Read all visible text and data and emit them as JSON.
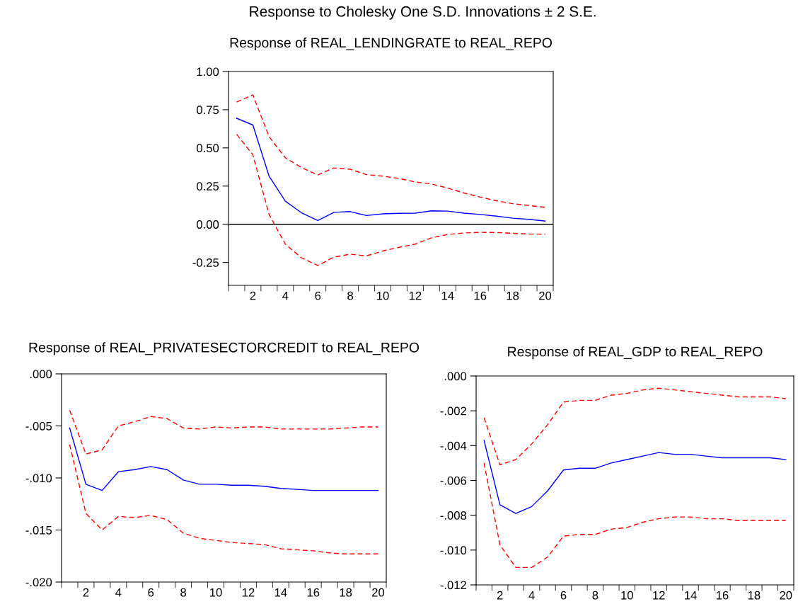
{
  "chart_data": [
    {
      "type": "line",
      "title": "Response to Cholesky One S.D. Innovations ± 2 S.E.",
      "subtitle": "Response of REAL_LENDINGRATE to REAL_REPO",
      "x": [
        1,
        2,
        3,
        4,
        5,
        6,
        7,
        8,
        9,
        10,
        11,
        12,
        13,
        14,
        15,
        16,
        17,
        18,
        19,
        20
      ],
      "series": [
        {
          "color": "#0000ff",
          "line_style": "solid",
          "values": [
            0.694,
            0.65,
            0.315,
            0.151,
            0.075,
            0.025,
            0.078,
            0.083,
            0.057,
            0.068,
            0.072,
            0.073,
            0.088,
            0.086,
            0.073,
            0.064,
            0.053,
            0.04,
            0.032,
            0.021
          ]
        },
        {
          "color": "#ff0000",
          "line_style": "dashed",
          "values": [
            0.8,
            0.847,
            0.573,
            0.435,
            0.371,
            0.323,
            0.369,
            0.36,
            0.325,
            0.315,
            0.3,
            0.277,
            0.264,
            0.237,
            0.205,
            0.178,
            0.154,
            0.135,
            0.123,
            0.111
          ]
        },
        {
          "color": "#ff0000",
          "line_style": "dashed",
          "values": [
            0.589,
            0.455,
            0.064,
            -0.13,
            -0.22,
            -0.27,
            -0.215,
            -0.196,
            -0.207,
            -0.175,
            -0.151,
            -0.13,
            -0.089,
            -0.067,
            -0.057,
            -0.053,
            -0.054,
            -0.059,
            -0.064,
            -0.065
          ]
        }
      ],
      "xlim": [
        0.5,
        20.5
      ],
      "xticks": [
        2,
        4,
        6,
        8,
        10,
        12,
        14,
        16,
        18,
        20,
        {
          "value": 0.5,
          "label": null
        },
        {
          "value": 1.5,
          "label": null
        },
        {
          "value": 2.5,
          "label": null
        },
        {
          "value": 3.5,
          "label": null
        },
        {
          "value": 4.5,
          "label": null
        },
        {
          "value": 5.5,
          "label": null
        },
        {
          "value": 6.5,
          "label": null
        },
        {
          "value": 7.5,
          "label": null
        },
        {
          "value": 8.5,
          "label": null
        },
        {
          "value": 9.5,
          "label": null
        },
        {
          "value": 10.5,
          "label": null
        },
        {
          "value": 11.5,
          "label": null
        },
        {
          "value": 12.5,
          "label": null
        },
        {
          "value": 13.5,
          "label": null
        },
        {
          "value": 14.5,
          "label": null
        },
        {
          "value": 15.5,
          "label": null
        },
        {
          "value": 16.5,
          "label": null
        },
        {
          "value": 17.5,
          "label": null
        },
        {
          "value": 18.5,
          "label": null
        },
        {
          "value": 19.5,
          "label": null
        },
        {
          "value": 20.5,
          "label": null
        }
      ],
      "ylim": [
        -0.4,
        1.0
      ],
      "yticks": [
        {
          "value": -0.25,
          "label": "-0.25"
        },
        {
          "value": 0,
          "label": "0.00"
        },
        {
          "value": 0.25,
          "label": "0.25"
        },
        {
          "value": 0.5,
          "label": "0.50"
        },
        {
          "value": 0.75,
          "label": "0.75"
        },
        {
          "value": 1.0,
          "label": "1.00"
        }
      ],
      "ref_lines": [
        {
          "axis": "y",
          "value": 0,
          "color": "#000000",
          "line_style": "solid"
        }
      ],
      "grid": false,
      "legend": false
    },
    {
      "type": "line",
      "title": "Response of REAL_PRIVATESECTORCREDIT to REAL_REPO",
      "x": [
        1,
        2,
        3,
        4,
        5,
        6,
        7,
        8,
        9,
        10,
        11,
        12,
        13,
        14,
        15,
        16,
        17,
        18,
        19,
        20
      ],
      "series": [
        {
          "color": "#0000ff",
          "line_style": "solid",
          "values": [
            -0.0052,
            -0.0106,
            -0.0112,
            -0.0094,
            -0.0092,
            -0.0089,
            -0.0092,
            -0.0102,
            -0.0106,
            -0.0106,
            -0.0107,
            -0.0107,
            -0.0108,
            -0.011,
            -0.0111,
            -0.0112,
            -0.0112,
            -0.0112,
            -0.0112,
            -0.0112
          ]
        },
        {
          "color": "#ff0000",
          "line_style": "dashed",
          "values": [
            -0.0035,
            -0.0077,
            -0.0073,
            -0.005,
            -0.0046,
            -0.0041,
            -0.0043,
            -0.0052,
            -0.0053,
            -0.0051,
            -0.0052,
            -0.0051,
            -0.0051,
            -0.0053,
            -0.0053,
            -0.0053,
            -0.0053,
            -0.0052,
            -0.0051,
            -0.0051
          ]
        },
        {
          "color": "#ff0000",
          "line_style": "dashed",
          "values": [
            -0.0068,
            -0.0134,
            -0.015,
            -0.0137,
            -0.0138,
            -0.0136,
            -0.014,
            -0.0153,
            -0.0158,
            -0.016,
            -0.0162,
            -0.0163,
            -0.0164,
            -0.0168,
            -0.0169,
            -0.017,
            -0.0172,
            -0.0173,
            -0.0173,
            -0.0173
          ]
        }
      ],
      "xlim": [
        0.5,
        20.5
      ],
      "xticks": [
        2,
        4,
        6,
        8,
        10,
        12,
        14,
        16,
        18,
        20,
        {
          "value": 0.5,
          "label": null
        },
        {
          "value": 1.5,
          "label": null
        },
        {
          "value": 2.5,
          "label": null
        },
        {
          "value": 3.5,
          "label": null
        },
        {
          "value": 4.5,
          "label": null
        },
        {
          "value": 5.5,
          "label": null
        },
        {
          "value": 6.5,
          "label": null
        },
        {
          "value": 7.5,
          "label": null
        },
        {
          "value": 8.5,
          "label": null
        },
        {
          "value": 9.5,
          "label": null
        },
        {
          "value": 10.5,
          "label": null
        },
        {
          "value": 11.5,
          "label": null
        },
        {
          "value": 12.5,
          "label": null
        },
        {
          "value": 13.5,
          "label": null
        },
        {
          "value": 14.5,
          "label": null
        },
        {
          "value": 15.5,
          "label": null
        },
        {
          "value": 16.5,
          "label": null
        },
        {
          "value": 17.5,
          "label": null
        },
        {
          "value": 18.5,
          "label": null
        },
        {
          "value": 19.5,
          "label": null
        },
        {
          "value": 20.5,
          "label": null
        }
      ],
      "ylim": [
        -0.02,
        0.0
      ],
      "yticks": [
        {
          "value": -0.02,
          "label": "-.020"
        },
        {
          "value": -0.015,
          "label": "-.015"
        },
        {
          "value": -0.01,
          "label": "-.010"
        },
        {
          "value": -0.005,
          "label": "-.005"
        },
        {
          "value": 0,
          "label": ".000"
        }
      ],
      "grid": false,
      "legend": false
    },
    {
      "type": "line",
      "title": "Response of REAL_GDP to REAL_REPO",
      "x": [
        1,
        2,
        3,
        4,
        5,
        6,
        7,
        8,
        9,
        10,
        11,
        12,
        13,
        14,
        15,
        16,
        17,
        18,
        19,
        20
      ],
      "series": [
        {
          "color": "#0000ff",
          "line_style": "solid",
          "values": [
            -0.0037,
            -0.0074,
            -0.0079,
            -0.0075,
            -0.0066,
            -0.0054,
            -0.0053,
            -0.0053,
            -0.005,
            -0.0048,
            -0.0046,
            -0.0044,
            -0.0045,
            -0.0045,
            -0.0046,
            -0.0047,
            -0.0047,
            -0.0047,
            -0.0047,
            -0.0048
          ]
        },
        {
          "color": "#ff0000",
          "line_style": "dashed",
          "values": [
            -0.0024,
            -0.0051,
            -0.0048,
            -0.0039,
            -0.0028,
            -0.0015,
            -0.0014,
            -0.0014,
            -0.0011,
            -0.001,
            -0.0008,
            -0.0007,
            -0.0008,
            -0.0009,
            -0.001,
            -0.0011,
            -0.0012,
            -0.0012,
            -0.0012,
            -0.0013
          ]
        },
        {
          "color": "#ff0000",
          "line_style": "dashed",
          "values": [
            -0.005,
            -0.0097,
            -0.011,
            -0.011,
            -0.0104,
            -0.0092,
            -0.0091,
            -0.0091,
            -0.0088,
            -0.0087,
            -0.0084,
            -0.0082,
            -0.0081,
            -0.0081,
            -0.0082,
            -0.0082,
            -0.0083,
            -0.0083,
            -0.0083,
            -0.0083
          ]
        }
      ],
      "xlim": [
        0.5,
        20.5
      ],
      "xticks": [
        2,
        4,
        6,
        8,
        10,
        12,
        14,
        16,
        18,
        20,
        {
          "value": 0.5,
          "label": null
        },
        {
          "value": 1.5,
          "label": null
        },
        {
          "value": 2.5,
          "label": null
        },
        {
          "value": 3.5,
          "label": null
        },
        {
          "value": 4.5,
          "label": null
        },
        {
          "value": 5.5,
          "label": null
        },
        {
          "value": 6.5,
          "label": null
        },
        {
          "value": 7.5,
          "label": null
        },
        {
          "value": 8.5,
          "label": null
        },
        {
          "value": 9.5,
          "label": null
        },
        {
          "value": 10.5,
          "label": null
        },
        {
          "value": 11.5,
          "label": null
        },
        {
          "value": 12.5,
          "label": null
        },
        {
          "value": 13.5,
          "label": null
        },
        {
          "value": 14.5,
          "label": null
        },
        {
          "value": 15.5,
          "label": null
        },
        {
          "value": 16.5,
          "label": null
        },
        {
          "value": 17.5,
          "label": null
        },
        {
          "value": 18.5,
          "label": null
        },
        {
          "value": 19.5,
          "label": null
        },
        {
          "value": 20.5,
          "label": null
        }
      ],
      "ylim": [
        -0.012,
        0.0
      ],
      "yticks": [
        {
          "value": -0.012,
          "label": "-.012"
        },
        {
          "value": -0.01,
          "label": "-.010"
        },
        {
          "value": -0.008,
          "label": "-.008"
        },
        {
          "value": -0.006,
          "label": "-.006"
        },
        {
          "value": -0.004,
          "label": "-.004"
        },
        {
          "value": -0.002,
          "label": "-.002"
        },
        {
          "value": 0,
          "label": ".000"
        }
      ],
      "grid": false,
      "legend": false
    }
  ]
}
